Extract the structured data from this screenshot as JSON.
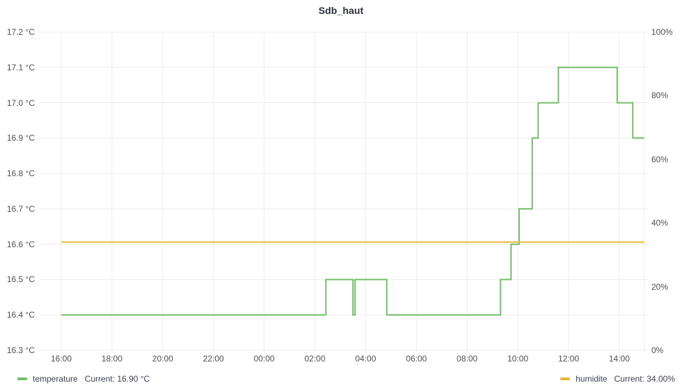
{
  "title": "Sdb_haut",
  "colors": {
    "temperature": "#73bf69",
    "humidite": "#eab839",
    "grid": "#ececec",
    "tick_text": "#4c4e55",
    "title_text": "#2b2e38"
  },
  "legend": [
    {
      "name": "temperature",
      "current": "Current: 16.90 °C",
      "color": "#73bf69"
    },
    {
      "name": "humidite",
      "current": "Current: 34.00%",
      "color": "#eab839"
    }
  ],
  "chart_data": {
    "type": "line",
    "title": "Sdb_haut",
    "interpolation": "step-after",
    "grid": true,
    "legend_position": "bottom",
    "x_ticks": [
      "16:00",
      "18:00",
      "20:00",
      "22:00",
      "00:00",
      "02:00",
      "04:00",
      "06:00",
      "08:00",
      "10:00",
      "12:00",
      "14:00"
    ],
    "y_left": {
      "unit": "°C",
      "min": 16.3,
      "max": 17.2,
      "tick_step": 0.1,
      "tick_labels": [
        "17.2 °C",
        "17.1 °C",
        "17.0 °C",
        "16.9 °C",
        "16.8 °C",
        "16.7 °C",
        "16.6 °C",
        "16.5 °C",
        "16.4 °C",
        "16.3 °C"
      ]
    },
    "y_right": {
      "unit": "%",
      "min": 0,
      "max": 100,
      "tick_step": 20,
      "tick_labels": [
        "100%",
        "80%",
        "60%",
        "40%",
        "20%",
        "0%"
      ]
    },
    "series": [
      {
        "name": "temperature",
        "axis": "left",
        "color": "#73bf69",
        "current": "16.90 °C",
        "end_t": "14:59",
        "points": [
          {
            "t": "16:00",
            "v": 16.4
          },
          {
            "t": "02:26",
            "v": 16.5
          },
          {
            "t": "03:30",
            "v": 16.4
          },
          {
            "t": "03:35",
            "v": 16.5
          },
          {
            "t": "04:50",
            "v": 16.4
          },
          {
            "t": "09:19",
            "v": 16.5
          },
          {
            "t": "09:44",
            "v": 16.6
          },
          {
            "t": "10:03",
            "v": 16.7
          },
          {
            "t": "10:34",
            "v": 16.9
          },
          {
            "t": "10:48",
            "v": 17.0
          },
          {
            "t": "11:36",
            "v": 17.1
          },
          {
            "t": "13:55",
            "v": 17.0
          },
          {
            "t": "14:32",
            "v": 16.9
          }
        ]
      },
      {
        "name": "humidite",
        "axis": "right",
        "color": "#eab839",
        "current": "34.00%",
        "end_t": "14:59",
        "points": [
          {
            "t": "16:00",
            "v": 34.0
          }
        ]
      }
    ]
  }
}
